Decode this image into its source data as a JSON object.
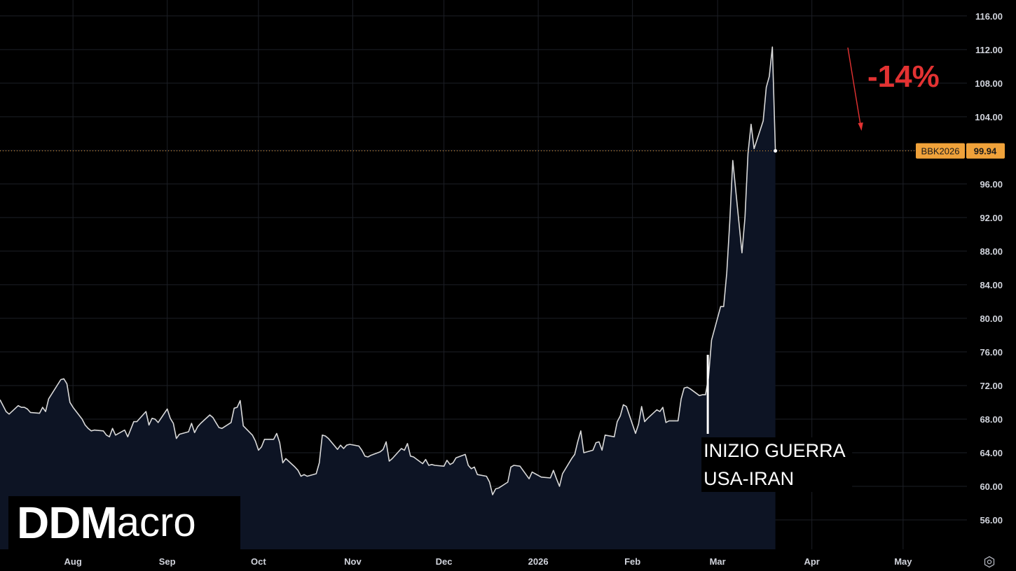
{
  "chart_data": {
    "type": "area",
    "symbol": "BBK2026",
    "last_price": "99.94",
    "y_ticks": [
      "116.00",
      "112.00",
      "108.00",
      "104.00",
      "100.00",
      "96.00",
      "92.00",
      "88.00",
      "84.00",
      "80.00",
      "76.00",
      "72.00",
      "68.00",
      "64.00",
      "60.00",
      "56.00"
    ],
    "y_tick_values": [
      116,
      112,
      108,
      104,
      100,
      96,
      92,
      88,
      84,
      80,
      76,
      72,
      68,
      64,
      60,
      56
    ],
    "ylim": [
      52.5,
      117.9
    ],
    "x_ticks": [
      {
        "label": "Aug",
        "date": "2025-08-01"
      },
      {
        "label": "Sep",
        "date": "2025-09-01"
      },
      {
        "label": "Oct",
        "date": "2025-10-01"
      },
      {
        "label": "Nov",
        "date": "2025-11-01"
      },
      {
        "label": "Dec",
        "date": "2025-12-01"
      },
      {
        "label": "2026",
        "date": "2026-01-01"
      },
      {
        "label": "Feb",
        "date": "2026-02-01"
      },
      {
        "label": "Mar",
        "date": "2026-03-01"
      },
      {
        "label": "Apr",
        "date": "2026-04-01"
      },
      {
        "label": "May",
        "date": "2026-05-01"
      }
    ],
    "xlim": [
      "2025-07-08",
      "2026-05-22"
    ],
    "grid": true,
    "line_color": "#d9d9d9",
    "fill_color": "#0d1424",
    "price_line_color": "#f0a23a",
    "series": [
      {
        "points": [
          [
            "2025-07-08",
            70.3
          ],
          [
            "2025-07-10",
            68.9
          ],
          [
            "2025-07-11",
            68.6
          ],
          [
            "2025-07-14",
            69.6
          ],
          [
            "2025-07-15",
            69.4
          ],
          [
            "2025-07-16",
            69.4
          ],
          [
            "2025-07-17",
            69.2
          ],
          [
            "2025-07-18",
            68.8
          ],
          [
            "2025-07-21",
            68.7
          ],
          [
            "2025-07-22",
            69.4
          ],
          [
            "2025-07-23",
            68.9
          ],
          [
            "2025-07-24",
            70.4
          ],
          [
            "2025-07-28",
            72.7
          ],
          [
            "2025-07-29",
            72.8
          ],
          [
            "2025-07-30",
            72.2
          ],
          [
            "2025-07-31",
            70.0
          ],
          [
            "2025-08-01",
            69.4
          ],
          [
            "2025-08-04",
            68.0
          ],
          [
            "2025-08-05",
            67.3
          ],
          [
            "2025-08-06",
            66.9
          ],
          [
            "2025-08-07",
            66.6
          ],
          [
            "2025-08-08",
            66.7
          ],
          [
            "2025-08-11",
            66.6
          ],
          [
            "2025-08-12",
            66.1
          ],
          [
            "2025-08-13",
            65.9
          ],
          [
            "2025-08-14",
            66.9
          ],
          [
            "2025-08-15",
            66.1
          ],
          [
            "2025-08-18",
            66.7
          ],
          [
            "2025-08-19",
            65.9
          ],
          [
            "2025-08-20",
            66.8
          ],
          [
            "2025-08-21",
            67.7
          ],
          [
            "2025-08-22",
            67.7
          ],
          [
            "2025-08-25",
            68.9
          ],
          [
            "2025-08-26",
            67.3
          ],
          [
            "2025-08-27",
            68.1
          ],
          [
            "2025-08-28",
            68.0
          ],
          [
            "2025-08-29",
            67.6
          ],
          [
            "2025-09-01",
            69.2
          ],
          [
            "2025-09-02",
            68.1
          ],
          [
            "2025-09-03",
            67.5
          ],
          [
            "2025-09-04",
            65.7
          ],
          [
            "2025-09-05",
            66.2
          ],
          [
            "2025-09-08",
            66.5
          ],
          [
            "2025-09-09",
            67.5
          ],
          [
            "2025-09-10",
            66.4
          ],
          [
            "2025-09-11",
            67.1
          ],
          [
            "2025-09-12",
            67.5
          ],
          [
            "2025-09-15",
            68.5
          ],
          [
            "2025-09-16",
            68.2
          ],
          [
            "2025-09-17",
            67.6
          ],
          [
            "2025-09-18",
            67.0
          ],
          [
            "2025-09-19",
            66.9
          ],
          [
            "2025-09-22",
            67.6
          ],
          [
            "2025-09-23",
            69.3
          ],
          [
            "2025-09-24",
            69.4
          ],
          [
            "2025-09-25",
            70.2
          ],
          [
            "2025-09-26",
            67.2
          ],
          [
            "2025-09-29",
            66.1
          ],
          [
            "2025-09-30",
            65.4
          ],
          [
            "2025-10-01",
            64.3
          ],
          [
            "2025-10-02",
            64.7
          ],
          [
            "2025-10-03",
            65.6
          ],
          [
            "2025-10-06",
            65.6
          ],
          [
            "2025-10-07",
            66.3
          ],
          [
            "2025-10-08",
            65.2
          ],
          [
            "2025-10-09",
            62.8
          ],
          [
            "2025-10-10",
            63.3
          ],
          [
            "2025-10-13",
            62.3
          ],
          [
            "2025-10-14",
            61.9
          ],
          [
            "2025-10-15",
            61.2
          ],
          [
            "2025-10-16",
            61.4
          ],
          [
            "2025-10-17",
            61.2
          ],
          [
            "2025-10-20",
            61.5
          ],
          [
            "2025-10-21",
            62.8
          ],
          [
            "2025-10-22",
            66.1
          ],
          [
            "2025-10-23",
            66.0
          ],
          [
            "2025-10-24",
            65.7
          ],
          [
            "2025-10-27",
            64.4
          ],
          [
            "2025-10-28",
            64.9
          ],
          [
            "2025-10-29",
            64.5
          ],
          [
            "2025-10-30",
            64.9
          ],
          [
            "2025-10-31",
            65.0
          ],
          [
            "2025-11-03",
            64.8
          ],
          [
            "2025-11-04",
            64.3
          ],
          [
            "2025-11-05",
            63.6
          ],
          [
            "2025-11-06",
            63.5
          ],
          [
            "2025-11-07",
            63.7
          ],
          [
            "2025-11-10",
            64.1
          ],
          [
            "2025-11-11",
            64.4
          ],
          [
            "2025-11-12",
            65.3
          ],
          [
            "2025-11-13",
            63.0
          ],
          [
            "2025-11-14",
            63.3
          ],
          [
            "2025-11-17",
            64.5
          ],
          [
            "2025-11-18",
            64.3
          ],
          [
            "2025-11-19",
            65.1
          ],
          [
            "2025-11-20",
            63.6
          ],
          [
            "2025-11-21",
            63.5
          ],
          [
            "2025-11-24",
            62.7
          ],
          [
            "2025-11-25",
            63.2
          ],
          [
            "2025-11-26",
            62.5
          ],
          [
            "2025-11-27",
            62.6
          ],
          [
            "2025-11-28",
            62.5
          ],
          [
            "2025-12-01",
            62.4
          ],
          [
            "2025-12-02",
            63.1
          ],
          [
            "2025-12-03",
            62.6
          ],
          [
            "2025-12-04",
            62.8
          ],
          [
            "2025-12-05",
            63.4
          ],
          [
            "2025-12-08",
            63.8
          ],
          [
            "2025-12-09",
            62.5
          ],
          [
            "2025-12-10",
            62.1
          ],
          [
            "2025-12-11",
            62.3
          ],
          [
            "2025-12-12",
            61.4
          ],
          [
            "2025-12-15",
            61.2
          ],
          [
            "2025-12-16",
            60.5
          ],
          [
            "2025-12-17",
            59.0
          ],
          [
            "2025-12-18",
            59.7
          ],
          [
            "2025-12-19",
            59.8
          ],
          [
            "2025-12-22",
            60.5
          ],
          [
            "2025-12-23",
            62.3
          ],
          [
            "2025-12-24",
            62.5
          ],
          [
            "2025-12-26",
            62.4
          ],
          [
            "2025-12-29",
            60.9
          ],
          [
            "2025-12-30",
            61.7
          ],
          [
            "2025-12-31",
            61.5
          ],
          [
            "2026-01-02",
            61.1
          ],
          [
            "2026-01-05",
            61.0
          ],
          [
            "2026-01-06",
            61.9
          ],
          [
            "2026-01-07",
            60.9
          ],
          [
            "2026-01-08",
            60.0
          ],
          [
            "2026-01-09",
            61.5
          ],
          [
            "2026-01-12",
            63.3
          ],
          [
            "2026-01-13",
            63.8
          ],
          [
            "2026-01-14",
            65.3
          ],
          [
            "2026-01-15",
            66.6
          ],
          [
            "2026-01-16",
            64.0
          ],
          [
            "2026-01-19",
            64.3
          ],
          [
            "2026-01-20",
            65.2
          ],
          [
            "2026-01-21",
            65.3
          ],
          [
            "2026-01-22",
            64.3
          ],
          [
            "2026-01-23",
            66.1
          ],
          [
            "2026-01-26",
            65.9
          ],
          [
            "2026-01-27",
            67.7
          ],
          [
            "2026-01-28",
            68.4
          ],
          [
            "2026-01-29",
            69.7
          ],
          [
            "2026-01-30",
            69.5
          ],
          [
            "2026-02-02",
            66.3
          ],
          [
            "2026-02-03",
            67.4
          ],
          [
            "2026-02-04",
            69.5
          ],
          [
            "2026-02-05",
            67.7
          ],
          [
            "2026-02-06",
            68.1
          ],
          [
            "2026-02-09",
            69.1
          ],
          [
            "2026-02-10",
            68.9
          ],
          [
            "2026-02-11",
            69.4
          ],
          [
            "2026-02-12",
            67.6
          ],
          [
            "2026-02-13",
            67.8
          ],
          [
            "2026-02-16",
            67.8
          ],
          [
            "2026-02-17",
            70.4
          ],
          [
            "2026-02-18",
            71.7
          ],
          [
            "2026-02-19",
            71.8
          ],
          [
            "2026-02-20",
            71.6
          ],
          [
            "2026-02-23",
            70.8
          ],
          [
            "2026-02-24",
            70.9
          ],
          [
            "2026-02-25",
            70.9
          ],
          [
            "2026-02-26",
            72.9
          ],
          [
            "2026-02-27",
            77.4
          ],
          [
            "2026-03-02",
            81.4
          ],
          [
            "2026-03-03",
            81.4
          ],
          [
            "2026-03-04",
            85.4
          ],
          [
            "2026-03-05",
            91.5
          ],
          [
            "2026-03-06",
            98.8
          ],
          [
            "2026-03-09",
            87.8
          ],
          [
            "2026-03-10",
            92.0
          ],
          [
            "2026-03-11",
            99.6
          ],
          [
            "2026-03-12",
            103.1
          ],
          [
            "2026-03-13",
            100.2
          ],
          [
            "2026-03-16",
            103.5
          ],
          [
            "2026-03-17",
            107.5
          ],
          [
            "2026-03-18",
            108.8
          ],
          [
            "2026-03-19",
            112.3
          ],
          [
            "2026-03-20",
            99.94
          ]
        ]
      }
    ],
    "annotations": {
      "event_line1": "INIZIO GUERRA",
      "event_line2": "USA-IRAN",
      "event_date": "2026-02-26",
      "change": "-14%"
    }
  },
  "logo": {
    "bold": "DDM",
    "light": "acro"
  },
  "settings_icon": "settings-gear-icon"
}
